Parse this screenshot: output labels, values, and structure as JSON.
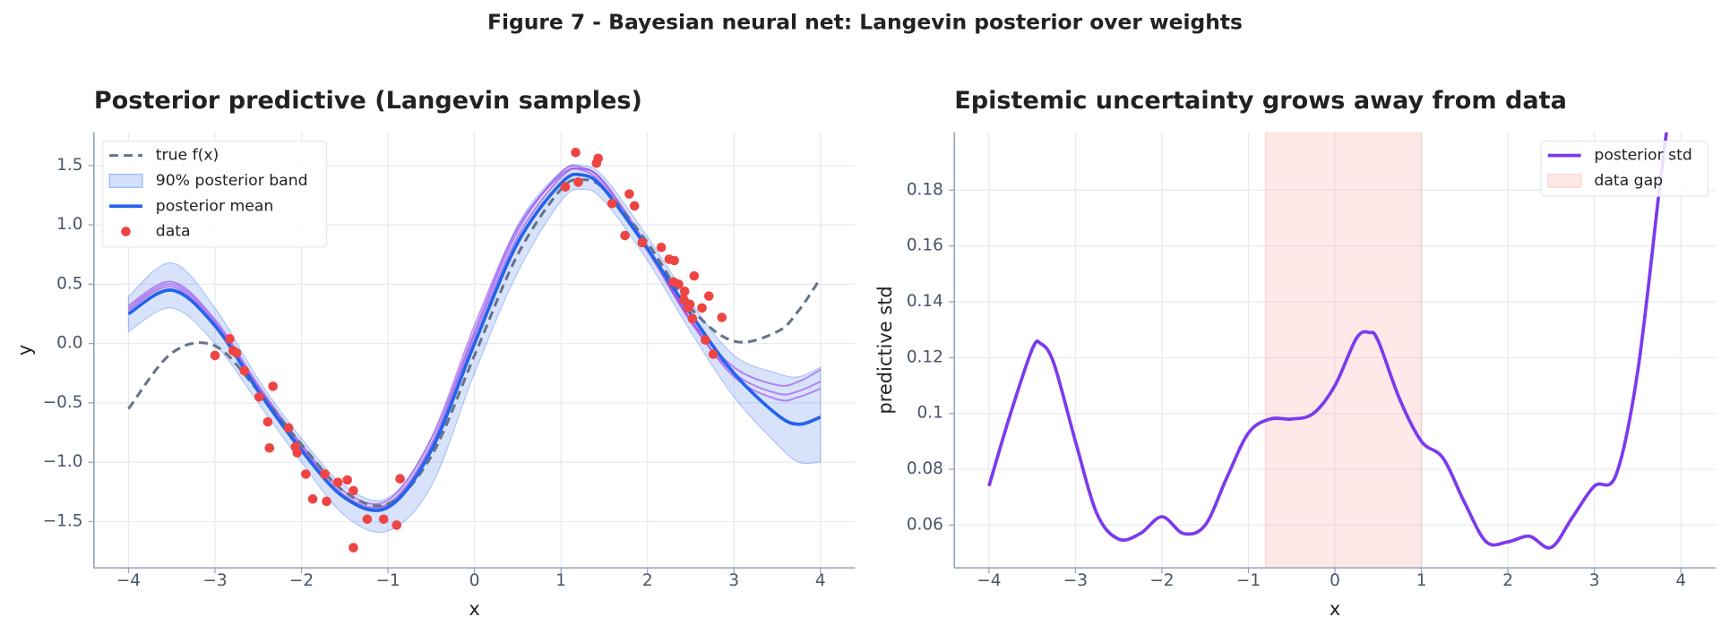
{
  "figure_title": "Figure 7 - Bayesian neural net: Langevin posterior over weights",
  "chart_data": [
    {
      "type": "line",
      "title": "Posterior predictive (Langevin samples)",
      "xlabel": "x",
      "ylabel": "y",
      "xlim": [
        -4.4,
        4.4
      ],
      "ylim": [
        -1.89,
        1.78
      ],
      "xticks": [
        {
          "value": -4,
          "label": "−4"
        },
        {
          "value": -3,
          "label": "−3"
        },
        {
          "value": -2,
          "label": "−2"
        },
        {
          "value": -1,
          "label": "−1"
        },
        0,
        1,
        2,
        3,
        4
      ],
      "yticks": [
        {
          "value": -1.5,
          "label": "−1.5"
        },
        {
          "value": -1.0,
          "label": "−1.0"
        },
        {
          "value": -0.5,
          "label": "−0.5"
        },
        {
          "value": 0,
          "label": "0.0"
        },
        0.5,
        {
          "value": 1.0,
          "label": "1.0"
        },
        1.5
      ],
      "grid": true,
      "legend": "upper left",
      "x": [
        -4,
        -3.5,
        -3,
        -2.5,
        -2,
        -1.5,
        -1,
        -0.5,
        0,
        0.5,
        1,
        1.25,
        1.5,
        2,
        2.5,
        3,
        3.5,
        3.75,
        4
      ],
      "series": [
        {
          "name": "true f(x)",
          "color": "#64748b",
          "style": "dashed",
          "values": [
            -0.55,
            -0.08,
            -0.02,
            -0.4,
            -0.85,
            -1.25,
            -1.35,
            -0.95,
            -0.1,
            0.75,
            1.3,
            1.38,
            1.3,
            0.85,
            0.3,
            0.02,
            0.1,
            0.28,
            0.55
          ]
        },
        {
          "name": "90% posterior band",
          "color": "#2563eb",
          "style": "band",
          "upper": [
            0.4,
            0.68,
            0.3,
            -0.3,
            -0.8,
            -1.2,
            -1.3,
            -0.8,
            0.1,
            1.0,
            1.45,
            1.5,
            1.4,
            0.9,
            0.35,
            -0.1,
            -0.25,
            -0.28,
            -0.2
          ],
          "lower": [
            0.1,
            0.3,
            0.0,
            -0.5,
            -1.0,
            -1.45,
            -1.58,
            -1.2,
            -0.25,
            0.6,
            1.2,
            1.3,
            1.2,
            0.7,
            0.1,
            -0.45,
            -0.85,
            -1.0,
            -1.0
          ]
        },
        {
          "name": "posterior mean",
          "color": "#2563eb",
          "style": "solid",
          "values": [
            0.25,
            0.45,
            0.15,
            -0.4,
            -0.9,
            -1.3,
            -1.38,
            -0.9,
            0.0,
            0.85,
            1.35,
            1.42,
            1.3,
            0.8,
            0.25,
            -0.25,
            -0.6,
            -0.68,
            -0.62
          ]
        }
      ],
      "samples": {
        "color": "#9333ea",
        "values": [
          [
            0.32,
            0.52,
            0.2,
            -0.35,
            -0.85,
            -1.25,
            -1.32,
            -0.8,
            0.15,
            0.98,
            1.42,
            1.46,
            1.32,
            0.78,
            0.2,
            -0.2,
            -0.35,
            -0.32,
            -0.22
          ],
          [
            0.3,
            0.5,
            0.18,
            -0.37,
            -0.87,
            -1.28,
            -1.35,
            -0.85,
            0.1,
            0.95,
            1.44,
            1.48,
            1.35,
            0.8,
            0.18,
            -0.25,
            -0.42,
            -0.4,
            -0.32
          ],
          [
            0.28,
            0.48,
            0.16,
            -0.38,
            -0.88,
            -1.3,
            -1.36,
            -0.88,
            0.06,
            0.9,
            1.4,
            1.47,
            1.36,
            0.82,
            0.2,
            -0.28,
            -0.47,
            -0.45,
            -0.38
          ]
        ]
      },
      "scatter": {
        "name": "data",
        "color": "#ef4444",
        "x": [
          -3.0,
          -2.83,
          -2.79,
          -2.75,
          -2.66,
          -2.49,
          -2.33,
          -2.39,
          -2.37,
          -2.15,
          -2.07,
          -2.05,
          -1.95,
          -1.87,
          -1.73,
          -1.71,
          -1.58,
          -1.47,
          -1.4,
          -1.4,
          -1.24,
          -1.05,
          -0.9,
          -0.86,
          1.05,
          1.17,
          1.2,
          1.41,
          1.43,
          1.59,
          1.74,
          1.79,
          1.85,
          1.94,
          2.16,
          2.25,
          2.31,
          2.3,
          2.36,
          2.43,
          2.42,
          2.47,
          2.52,
          2.54,
          2.63,
          2.67,
          2.71,
          2.76,
          2.86,
          2.49
        ],
        "y": [
          -0.1,
          0.04,
          -0.06,
          -0.08,
          -0.23,
          -0.45,
          -0.36,
          -0.66,
          -0.88,
          -0.71,
          -0.87,
          -0.92,
          -1.1,
          -1.31,
          -1.1,
          -1.33,
          -1.17,
          -1.15,
          -1.24,
          -1.72,
          -1.48,
          -1.48,
          -1.53,
          -1.14,
          1.32,
          1.61,
          1.36,
          1.52,
          1.56,
          1.18,
          0.91,
          1.26,
          1.16,
          0.85,
          0.81,
          0.71,
          0.7,
          0.52,
          0.5,
          0.44,
          0.37,
          0.3,
          0.21,
          0.57,
          0.3,
          0.03,
          0.4,
          -0.09,
          0.22,
          0.33
        ]
      }
    },
    {
      "type": "line",
      "title": "Epistemic uncertainty grows away from data",
      "xlabel": "x",
      "ylabel": "predictive std",
      "xlim": [
        -4.4,
        4.4
      ],
      "ylim": [
        0.0447,
        0.2007
      ],
      "xticks": [
        {
          "value": -4,
          "label": "−4"
        },
        {
          "value": -3,
          "label": "−3"
        },
        {
          "value": -2,
          "label": "−2"
        },
        {
          "value": -1,
          "label": "−1"
        },
        0,
        1,
        2,
        3,
        4
      ],
      "yticks": [
        0.06,
        0.08,
        0.1,
        0.12,
        0.14,
        0.16,
        0.18
      ],
      "grid": true,
      "legend": "upper right",
      "x": [
        -4,
        -3.75,
        -3.5,
        -3.4,
        -3.25,
        -3,
        -2.75,
        -2.5,
        -2.25,
        -2,
        -1.75,
        -1.5,
        -1.25,
        -1,
        -0.75,
        -0.5,
        -0.25,
        0,
        0.25,
        0.4,
        0.5,
        0.75,
        1,
        1.25,
        1.5,
        1.75,
        2,
        2.25,
        2.5,
        2.75,
        3,
        3.25,
        3.5,
        3.75,
        3.85
      ],
      "series": [
        {
          "name": "posterior std",
          "color": "#7c3aed",
          "style": "solid",
          "values": [
            0.074,
            0.1,
            0.123,
            0.125,
            0.118,
            0.09,
            0.064,
            0.055,
            0.057,
            0.063,
            0.057,
            0.06,
            0.077,
            0.093,
            0.098,
            0.098,
            0.1,
            0.11,
            0.127,
            0.129,
            0.126,
            0.105,
            0.09,
            0.084,
            0.068,
            0.054,
            0.054,
            0.056,
            0.052,
            0.063,
            0.074,
            0.078,
            0.115,
            0.18,
            0.205
          ]
        }
      ],
      "span": {
        "name": "data gap",
        "color": "#fca5a5",
        "range": [
          -0.8,
          1.0
        ]
      }
    }
  ]
}
